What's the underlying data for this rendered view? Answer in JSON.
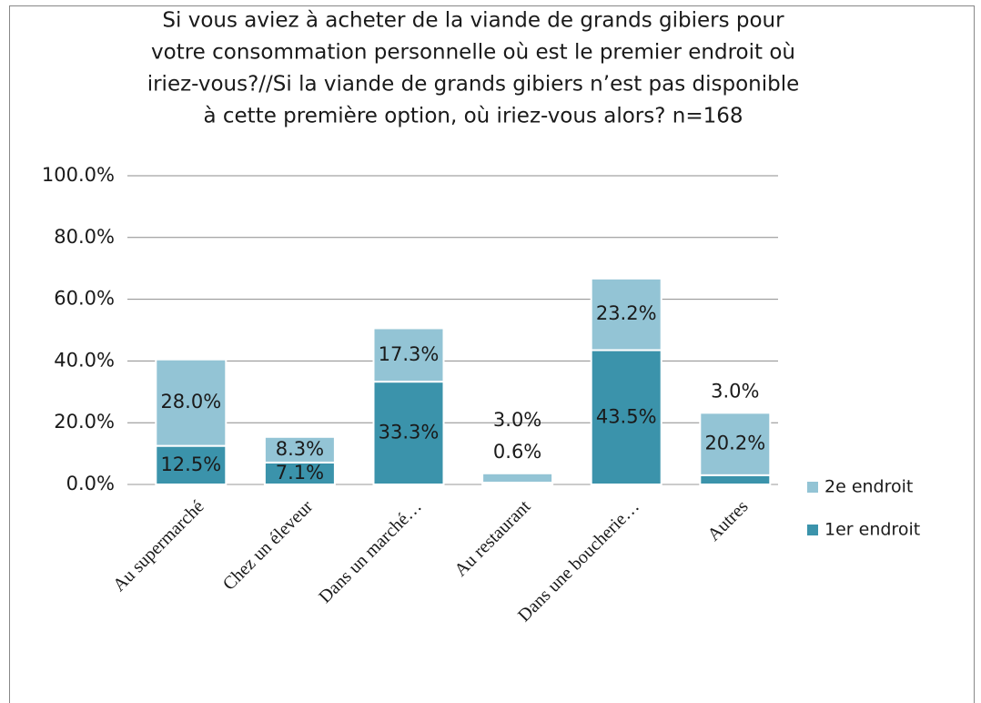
{
  "chart_data": {
    "type": "stacked_bar",
    "title": [
      "Si vous aviez à acheter de la viande de grands gibiers pour",
      "votre consommation personnelle où est le premier endroit où",
      "iriez-vous?//Si la viande de grands gibiers n’est pas disponible",
      "à cette première option, où iriez-vous alors?  n=168"
    ],
    "categories": [
      "Au supermarché",
      "Chez un éleveur",
      "Dans un marché…",
      "Au restaurant",
      "Dans une boucherie…",
      "Autres"
    ],
    "series": [
      {
        "name": "1er endroit",
        "color": "#3b93ab",
        "values": [
          12.5,
          7.1,
          33.3,
          0.6,
          43.5,
          3.0
        ],
        "value_labels": [
          "12.5%",
          "7.1%",
          "33.3%",
          "0.6%",
          "43.5%",
          "3.0%"
        ]
      },
      {
        "name": "2e endroit",
        "color": "#93c4d5",
        "values": [
          28.0,
          8.3,
          17.3,
          3.0,
          23.2,
          20.2
        ],
        "value_labels": [
          "28.0%",
          "8.3%",
          "17.3%",
          "3.0%",
          "23.2%",
          "20.2%"
        ]
      }
    ],
    "ylim": [
      0,
      100
    ],
    "yticks": [
      {
        "value": 0,
        "label": "0.0%"
      },
      {
        "value": 20,
        "label": "20.0%"
      },
      {
        "value": 40,
        "label": "40.0%"
      },
      {
        "value": 60,
        "label": "60.0%"
      },
      {
        "value": 80,
        "label": "80.0%"
      },
      {
        "value": 100,
        "label": "100.0%"
      }
    ],
    "grid": true,
    "legend": "right"
  }
}
